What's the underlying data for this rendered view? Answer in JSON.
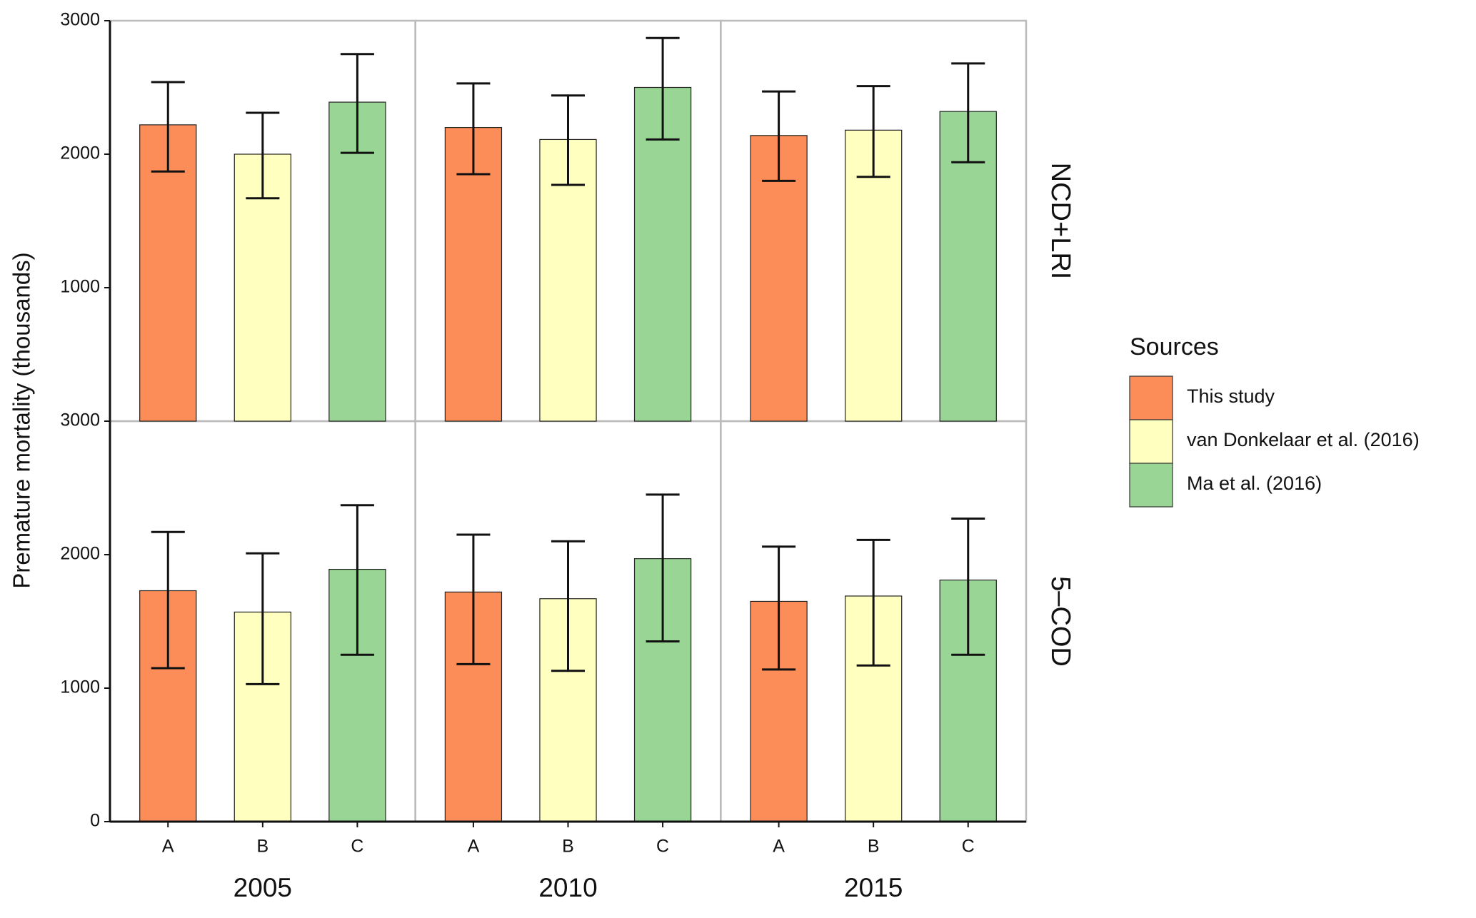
{
  "chart_data": {
    "type": "bar",
    "y_label": "Premature mortality (thousands)",
    "legend_title": "Sources",
    "columns": [
      "2005",
      "2010",
      "2015"
    ],
    "categories": [
      "A",
      "B",
      "C"
    ],
    "rows": [
      {
        "label": "NCD+LRI",
        "ylim": [
          0,
          3000
        ],
        "yticks": [
          1000,
          2000,
          3000
        ]
      },
      {
        "label": "5–COD",
        "ylim": [
          0,
          3000
        ],
        "yticks": [
          0,
          1000,
          2000,
          3000
        ]
      }
    ],
    "series": [
      {
        "name": "This study",
        "color": "#fc8d59",
        "values": [
          [
            2220,
            2200,
            2140
          ],
          [
            1730,
            1720,
            1650
          ]
        ],
        "lower": [
          [
            1870,
            1850,
            1800
          ],
          [
            1150,
            1180,
            1140
          ]
        ],
        "upper": [
          [
            2540,
            2530,
            2470
          ],
          [
            2170,
            2150,
            2060
          ]
        ]
      },
      {
        "name": "van Donkelaar et al. (2016)",
        "color": "#ffffbf",
        "values": [
          [
            2000,
            2110,
            2180
          ],
          [
            1570,
            1670,
            1690
          ]
        ],
        "lower": [
          [
            1670,
            1770,
            1830
          ],
          [
            1030,
            1130,
            1170
          ]
        ],
        "upper": [
          [
            2310,
            2440,
            2510
          ],
          [
            2010,
            2100,
            2110
          ]
        ]
      },
      {
        "name": "Ma et al. (2016)",
        "color": "#99d594",
        "values": [
          [
            2390,
            2500,
            2320
          ],
          [
            1890,
            1970,
            1810
          ]
        ],
        "lower": [
          [
            2010,
            2110,
            1940
          ],
          [
            1250,
            1350,
            1250
          ]
        ],
        "upper": [
          [
            2750,
            2870,
            2680
          ],
          [
            2370,
            2450,
            2270
          ]
        ]
      }
    ]
  }
}
